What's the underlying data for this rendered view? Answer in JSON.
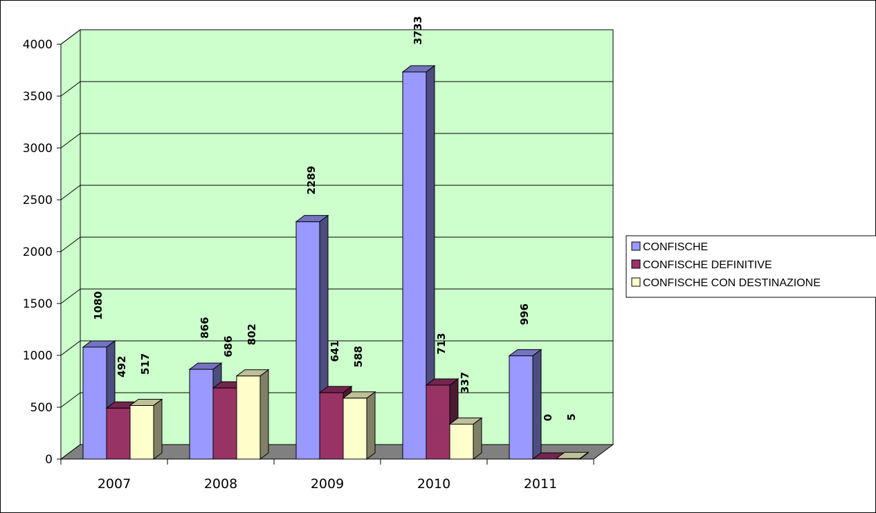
{
  "colors": {
    "wall": "#ccffcc",
    "floor": "#808080",
    "frame": "#000000",
    "gridline": "#000000"
  },
  "chart_data": {
    "type": "bar",
    "title": "",
    "xlabel": "",
    "ylabel": "",
    "ylim": [
      0,
      4000
    ],
    "yticks": [
      0,
      500,
      1000,
      1500,
      2000,
      2500,
      3000,
      3500,
      4000
    ],
    "grid": true,
    "legend_position": "right",
    "style": "3d-clustered-column",
    "categories": [
      "2007",
      "2008",
      "2009",
      "2010",
      "2011"
    ],
    "series": [
      {
        "name": "CONFISCHE",
        "values": [
          1080,
          866,
          2289,
          3733,
          996
        ],
        "color": "#9999ff",
        "side_color": "#4d4d80",
        "top_color": "#7373bf"
      },
      {
        "name": "CONFISCHE DEFINITIVE",
        "values": [
          492,
          686,
          641,
          713,
          0
        ],
        "color": "#993366",
        "side_color": "#4d1a33",
        "top_color": "#73264d"
      },
      {
        "name": "CONFISCHE CON DESTINAZIONE",
        "values": [
          517,
          802,
          588,
          337,
          5
        ],
        "color": "#ffffcc",
        "side_color": "#808066",
        "top_color": "#bfbf99"
      }
    ]
  }
}
